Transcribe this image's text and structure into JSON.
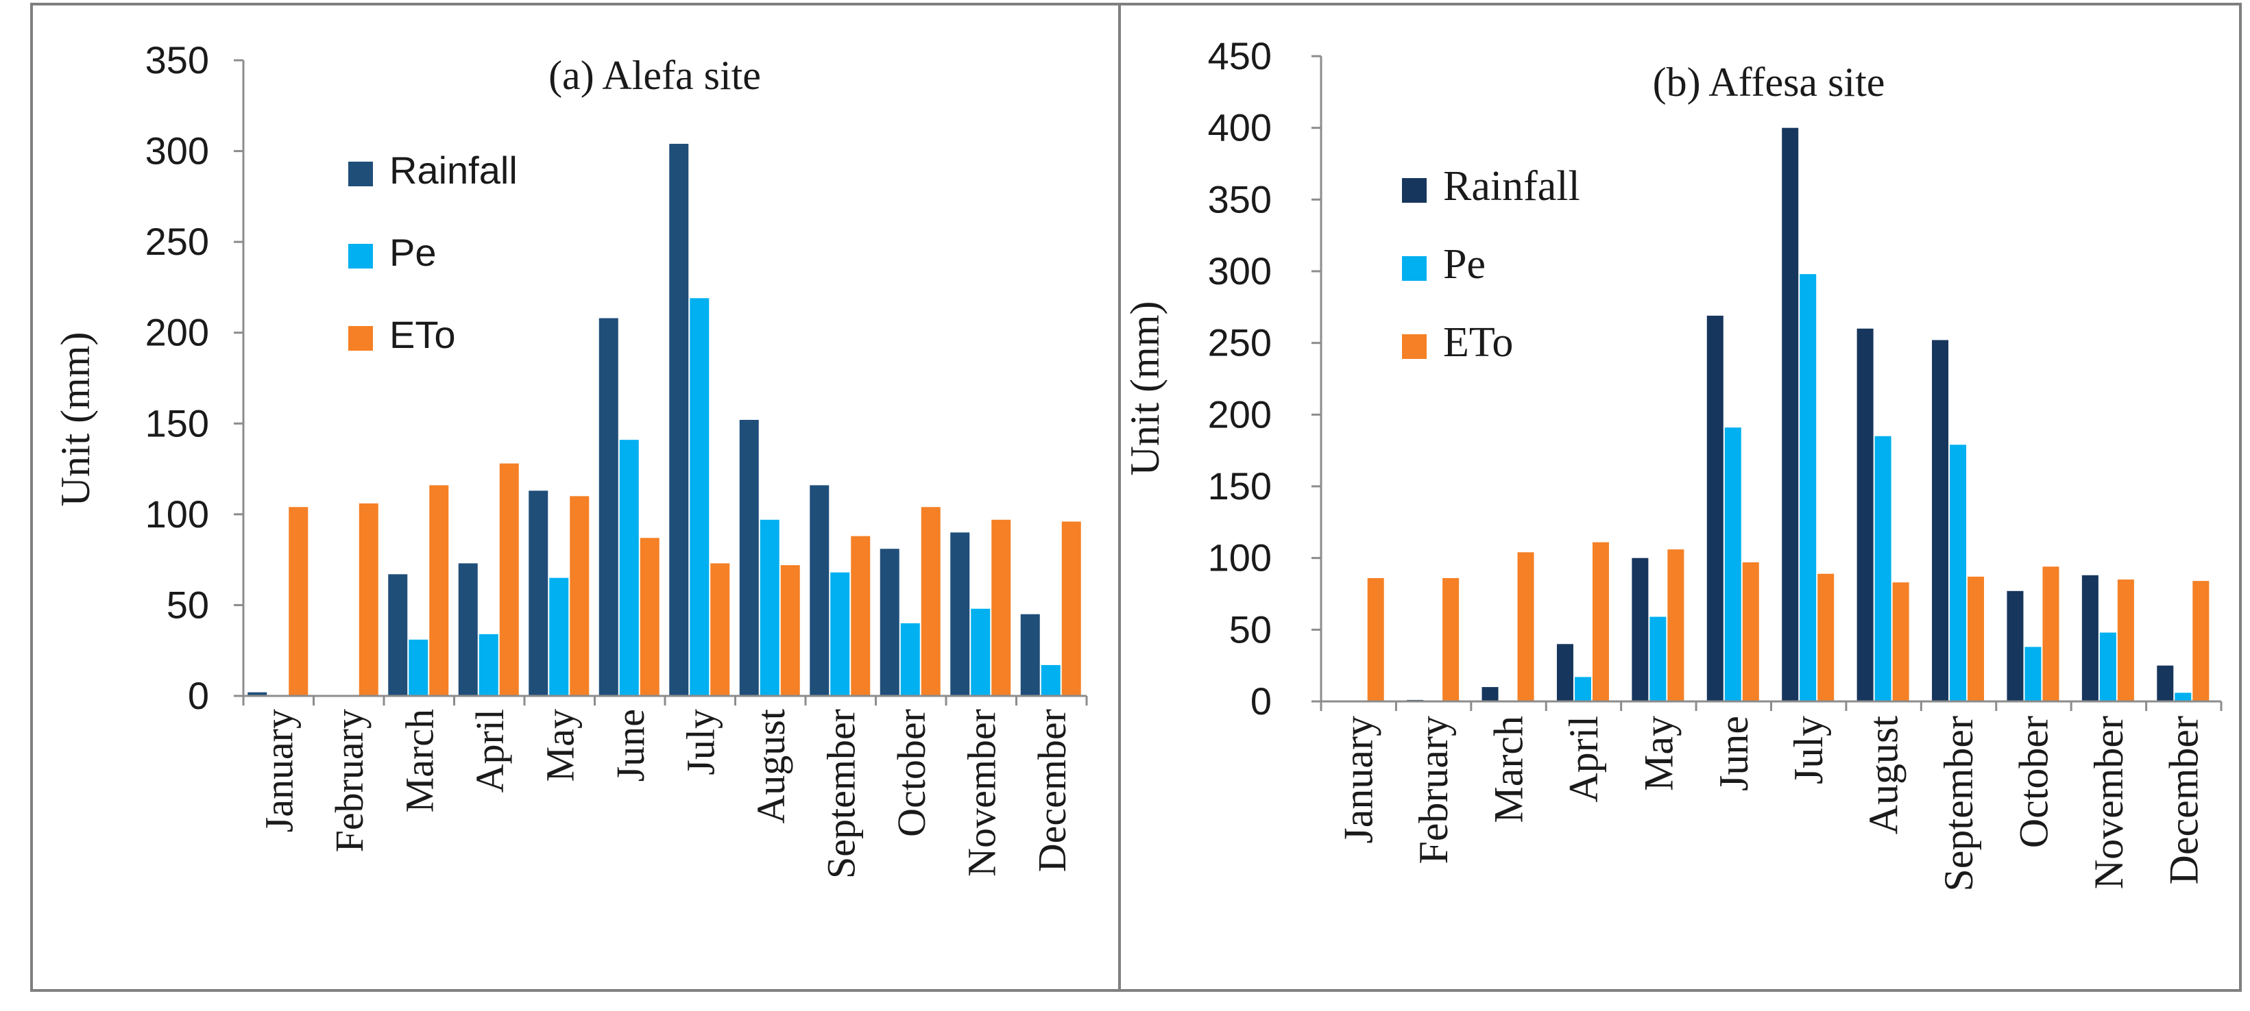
{
  "colors": {
    "rainfall_a": "#1F4E79",
    "rainfall_b": "#17365D",
    "pe": "#00B0F0",
    "eto": "#F58025",
    "axis": "#8C8C8C",
    "border": "#7F7F7F"
  },
  "chart_data": [
    {
      "type": "bar",
      "title": "(a) Alefa site",
      "xlabel": "",
      "ylabel": "Unit (mm)",
      "ylim": [
        0,
        350
      ],
      "yticks": [
        0,
        50,
        100,
        150,
        200,
        250,
        300,
        350
      ],
      "grid": false,
      "legend_position": "top-left",
      "categories": [
        "January",
        "February",
        "March",
        "April",
        "May",
        "June",
        "July",
        "August",
        "September",
        "October",
        "November",
        "December"
      ],
      "series": [
        {
          "name": "Rainfall",
          "color": "#1F4E79",
          "values": [
            2,
            0,
            67,
            73,
            113,
            208,
            304,
            152,
            116,
            81,
            90,
            45
          ]
        },
        {
          "name": "Pe",
          "color": "#00B0F0",
          "values": [
            0,
            0,
            31,
            34,
            65,
            141,
            219,
            97,
            68,
            40,
            48,
            17
          ]
        },
        {
          "name": "ETo",
          "color": "#F58025",
          "values": [
            104,
            106,
            116,
            128,
            110,
            87,
            73,
            72,
            88,
            104,
            97,
            96
          ]
        }
      ]
    },
    {
      "type": "bar",
      "title": "(b) Affesa site",
      "xlabel": "",
      "ylabel": "Unit (mm)",
      "ylim": [
        0,
        450
      ],
      "yticks": [
        0,
        50,
        100,
        150,
        200,
        250,
        300,
        350,
        400,
        450
      ],
      "grid": false,
      "legend_position": "top-left",
      "categories": [
        "January",
        "February",
        "March",
        "April",
        "May",
        "June",
        "July",
        "August",
        "September",
        "October",
        "November",
        "December"
      ],
      "series": [
        {
          "name": "Rainfall",
          "color": "#17365D",
          "values": [
            0,
            1,
            10,
            40,
            100,
            269,
            400,
            260,
            252,
            77,
            88,
            25
          ]
        },
        {
          "name": "Pe",
          "color": "#00B0F0",
          "values": [
            0,
            0,
            0,
            17,
            59,
            191,
            298,
            185,
            179,
            38,
            48,
            6
          ]
        },
        {
          "name": "ETo",
          "color": "#F58025",
          "values": [
            86,
            86,
            104,
            111,
            106,
            97,
            89,
            83,
            87,
            94,
            85,
            84
          ]
        }
      ]
    }
  ]
}
